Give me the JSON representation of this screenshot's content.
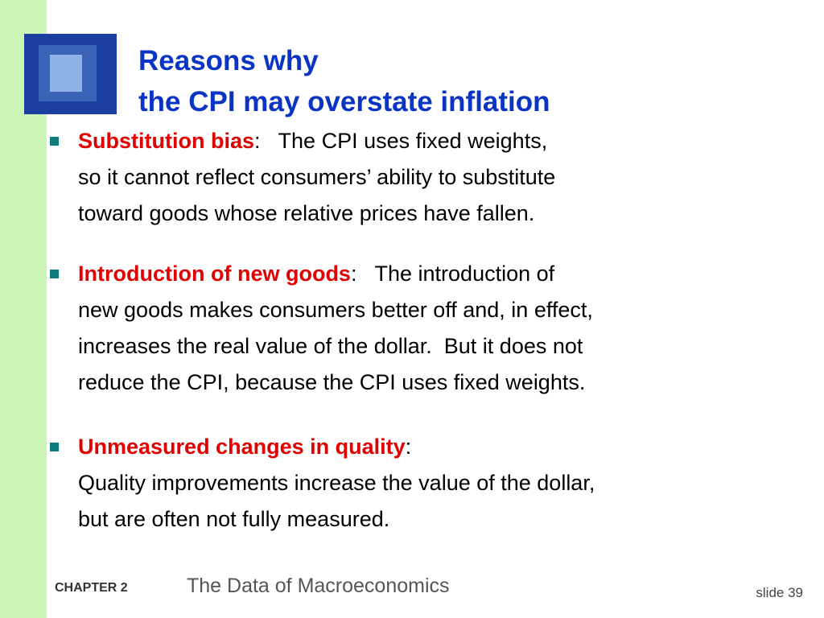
{
  "title": {
    "lines": [
      "Reasons why",
      "the CPI may overstate inflation"
    ]
  },
  "bullets": [
    {
      "term": "Substitution bias",
      "separator": ":",
      "inline": "The CPI uses fixed weights,",
      "lines": [
        "so it cannot reflect consumers’ ability to substitute",
        "toward goods whose relative prices have fallen."
      ]
    },
    {
      "term": "Introduction of new goods",
      "separator": ":",
      "inline": "The introduction of",
      "lines": [
        "new goods makes consumers better off and, in effect,",
        "increases the real value of the dollar.  But it does not",
        "reduce the CPI, because the CPI uses fixed weights."
      ]
    },
    {
      "term": "Unmeasured changes in quality",
      "separator": ":",
      "lines": [
        "Quality improvements increase the value of the dollar,",
        "but are often not fully measured."
      ]
    }
  ],
  "footer": {
    "chapter": "CHAPTER 2",
    "chapter_title": "The Data of Macroeconomics",
    "slide": "slide 39"
  }
}
